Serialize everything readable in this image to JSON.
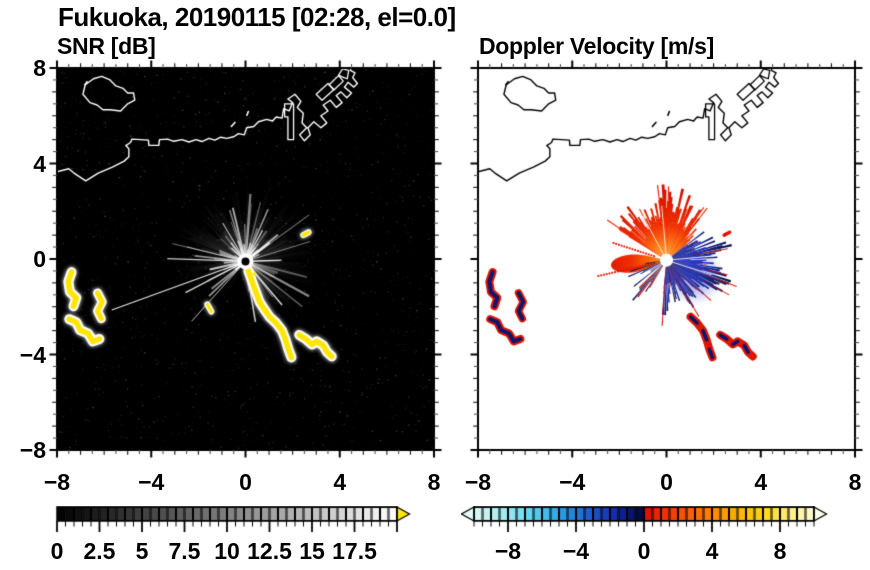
{
  "header": {
    "title": "Fukuoka, 20190115 [02:28, el=0.0]"
  },
  "panels": [
    {
      "id": "snr",
      "subtitle": "SNR [dB]"
    },
    {
      "id": "velocity",
      "subtitle": "Doppler Velocity [m/s]"
    }
  ],
  "axis": {
    "range": [
      -8,
      8
    ],
    "minor_step": 0.5,
    "major_ticks": [
      {
        "v": -8,
        "label": "−8"
      },
      {
        "v": -4,
        "label": "−4"
      },
      {
        "v": 0,
        "label": "0"
      },
      {
        "v": 4,
        "label": "4"
      },
      {
        "v": 8,
        "label": "8"
      }
    ]
  },
  "colorbars": [
    {
      "id": "snr",
      "range": [
        0,
        20
      ],
      "segments": 40,
      "arrow_left": false,
      "arrow_right": true,
      "over_color": "#ffe600",
      "under_color": "#000000",
      "cmap_stops": [
        [
          0,
          "#000000"
        ],
        [
          20,
          "#ffffff"
        ]
      ],
      "major_marks": [
        0,
        2.5,
        5,
        7.5,
        10,
        12.5,
        15,
        17.5,
        20
      ],
      "ticks": [
        {
          "v": 0,
          "label": "0"
        },
        {
          "v": 2.5,
          "label": "2.5"
        },
        {
          "v": 5,
          "label": "5"
        },
        {
          "v": 7.5,
          "label": "7.5"
        },
        {
          "v": 10,
          "label": "10"
        },
        {
          "v": 12.5,
          "label": "12.5"
        },
        {
          "v": 15,
          "label": "15"
        },
        {
          "v": 17.5,
          "label": "17.5"
        }
      ]
    },
    {
      "id": "velocity",
      "range": [
        -10,
        10
      ],
      "segments": 40,
      "arrow_left": true,
      "arrow_right": true,
      "over_color": "#fffde8",
      "under_color": "#e6fbf7",
      "cmap_stops": [
        [
          -10,
          "#dcf8f4"
        ],
        [
          -8.5,
          "#aaeef2"
        ],
        [
          -7,
          "#6cdcf2"
        ],
        [
          -5.5,
          "#38b4ea"
        ],
        [
          -4,
          "#1e7ed8"
        ],
        [
          -3,
          "#1c52cc"
        ],
        [
          -2,
          "#1534b8"
        ],
        [
          -1.2,
          "#0a2090"
        ],
        [
          -0.5,
          "#051056"
        ],
        [
          -0.05,
          "#02082e"
        ],
        [
          0.05,
          "#da0c00"
        ],
        [
          0.8,
          "#ea2400"
        ],
        [
          2,
          "#f84800"
        ],
        [
          3.2,
          "#ff6c00"
        ],
        [
          4.5,
          "#ff9400"
        ],
        [
          6,
          "#ffbe00"
        ],
        [
          7.2,
          "#ffd820"
        ],
        [
          8.2,
          "#ffe966"
        ],
        [
          9.2,
          "#fff5a8"
        ],
        [
          10,
          "#fffbd8"
        ]
      ],
      "major_marks": [
        -8,
        -4,
        0,
        4,
        8
      ],
      "ticks": [
        {
          "v": -8,
          "label": "−8"
        },
        {
          "v": -4,
          "label": "−4"
        },
        {
          "v": 0,
          "label": "0"
        },
        {
          "v": 4,
          "label": "4"
        },
        {
          "v": 8,
          "label": "8"
        }
      ]
    }
  ],
  "map": {
    "coast_main": [
      [
        -8,
        3.65
      ],
      [
        -7.5,
        3.78
      ],
      [
        -7.28,
        3.6
      ],
      [
        -6.78,
        3.27
      ],
      [
        -6.25,
        3.6
      ],
      [
        -5.65,
        3.85
      ],
      [
        -5.15,
        4.1
      ],
      [
        -4.95,
        4.28
      ],
      [
        -4.95,
        4.62
      ],
      [
        -5.08,
        4.75
      ],
      [
        -4.88,
        4.88
      ],
      [
        -4.82,
        5.02
      ],
      [
        -4.45,
        5.0
      ],
      [
        -4.12,
        4.98
      ],
      [
        -4.1,
        4.76
      ],
      [
        -3.68,
        4.76
      ],
      [
        -3.65,
        5.0
      ],
      [
        -3.3,
        5.02
      ],
      [
        -3.05,
        4.93
      ],
      [
        -2.7,
        5.0
      ],
      [
        -2.4,
        4.9
      ],
      [
        -2.1,
        5.0
      ],
      [
        -1.85,
        4.92
      ],
      [
        -1.55,
        5.05
      ],
      [
        -1.3,
        4.98
      ],
      [
        -1.05,
        5.1
      ],
      [
        -0.8,
        5.05
      ],
      [
        -0.5,
        5.12
      ],
      [
        -0.3,
        5.25
      ],
      [
        -0.05,
        5.2
      ],
      [
        0.05,
        5.5
      ],
      [
        0.35,
        5.55
      ],
      [
        0.55,
        5.75
      ],
      [
        0.9,
        5.85
      ],
      [
        1.15,
        5.78
      ],
      [
        1.3,
        5.95
      ],
      [
        1.55,
        5.9
      ],
      [
        1.62,
        6.3
      ],
      [
        1.85,
        6.2
      ],
      [
        2.0,
        6.55
      ],
      [
        1.8,
        6.7
      ],
      [
        2.1,
        6.9
      ],
      [
        2.35,
        6.6
      ],
      [
        2.2,
        6.35
      ],
      [
        2.45,
        6.1
      ],
      [
        2.4,
        5.7
      ],
      [
        2.6,
        5.5
      ],
      [
        2.3,
        5.2
      ],
      [
        2.5,
        4.95
      ],
      [
        2.75,
        5.2
      ],
      [
        2.65,
        5.5
      ],
      [
        2.9,
        5.75
      ],
      [
        3.2,
        5.5
      ],
      [
        3.45,
        5.7
      ],
      [
        3.2,
        6.0
      ],
      [
        3.5,
        6.2
      ],
      [
        3.3,
        6.45
      ],
      [
        3.6,
        6.65
      ],
      [
        3.85,
        6.35
      ],
      [
        4.1,
        6.55
      ],
      [
        3.85,
        6.85
      ],
      [
        4.05,
        7.0
      ],
      [
        4.3,
        6.75
      ],
      [
        4.5,
        6.95
      ],
      [
        4.2,
        7.2
      ],
      [
        4.35,
        7.4
      ],
      [
        4.6,
        7.2
      ],
      [
        4.75,
        7.35
      ],
      [
        4.55,
        7.6
      ],
      [
        4.65,
        7.8
      ],
      [
        4.45,
        7.9
      ],
      [
        4.5,
        8.1
      ]
    ],
    "island": [
      [
        -6.9,
        6.9
      ],
      [
        -6.8,
        7.3
      ],
      [
        -6.45,
        7.55
      ],
      [
        -6.1,
        7.65
      ],
      [
        -5.75,
        7.5
      ],
      [
        -5.5,
        7.25
      ],
      [
        -5.2,
        7.15
      ],
      [
        -5.0,
        6.95
      ],
      [
        -4.75,
        6.95
      ],
      [
        -4.7,
        6.65
      ],
      [
        -5.0,
        6.5
      ],
      [
        -5.3,
        6.2
      ],
      [
        -5.75,
        6.25
      ],
      [
        -6.05,
        6.25
      ],
      [
        -6.3,
        6.45
      ],
      [
        -6.6,
        6.55
      ]
    ],
    "piers": [
      [
        [
          1.66,
          6.5
        ],
        [
          2.04,
          6.5
        ],
        [
          2.04,
          5.0
        ],
        [
          1.8,
          5.0
        ],
        [
          1.8,
          5.95
        ],
        [
          1.66,
          5.95
        ]
      ],
      [
        [
          3.0,
          6.9
        ],
        [
          3.5,
          7.35
        ],
        [
          3.75,
          7.1
        ],
        [
          3.25,
          6.65
        ]
      ],
      [
        [
          3.55,
          7.3
        ],
        [
          3.95,
          7.68
        ],
        [
          4.15,
          7.45
        ],
        [
          3.75,
          7.08
        ]
      ],
      [
        [
          3.95,
          7.7
        ],
        [
          4.12,
          7.96
        ],
        [
          4.38,
          7.9
        ],
        [
          4.32,
          7.55
        ],
        [
          4.12,
          7.62
        ]
      ]
    ],
    "islets": [
      [
        [
          -0.6,
          5.55
        ],
        [
          -0.45,
          5.72
        ]
      ],
      [
        [
          0.06,
          6.02
        ],
        [
          0.12,
          6.18
        ]
      ],
      [
        [
          -6.82,
          7.3
        ],
        [
          -6.72,
          7.42
        ]
      ]
    ]
  },
  "clutter": {
    "chain_a": [
      [
        0.12,
        -0.5
      ],
      [
        0.28,
        -0.95
      ],
      [
        0.45,
        -1.4
      ],
      [
        0.6,
        -1.8
      ],
      [
        0.78,
        -2.08
      ],
      [
        1.02,
        -2.42
      ],
      [
        1.3,
        -2.68
      ],
      [
        1.55,
        -3.0
      ],
      [
        1.7,
        -3.38
      ],
      [
        1.82,
        -3.78
      ],
      [
        1.95,
        -4.12
      ]
    ],
    "chain_b": [
      [
        2.28,
        -3.18
      ],
      [
        2.56,
        -3.35
      ],
      [
        2.82,
        -3.58
      ],
      [
        3.02,
        -3.45
      ],
      [
        3.3,
        -3.62
      ],
      [
        3.46,
        -3.9
      ],
      [
        3.66,
        -4.08
      ]
    ],
    "cluster_a": [
      [
        -7.38,
        -0.55
      ],
      [
        -7.52,
        -0.95
      ],
      [
        -7.45,
        -1.38
      ],
      [
        -7.18,
        -1.62
      ],
      [
        -7.3,
        -1.98
      ]
    ],
    "cluster_b": [
      [
        -6.28,
        -1.42
      ],
      [
        -6.08,
        -1.8
      ],
      [
        -6.28,
        -2.18
      ],
      [
        -6.12,
        -2.5
      ]
    ],
    "cluster_c": [
      [
        -7.48,
        -2.52
      ],
      [
        -7.18,
        -2.65
      ],
      [
        -7.02,
        -2.98
      ],
      [
        -6.68,
        -3.12
      ],
      [
        -6.48,
        -3.45
      ],
      [
        -6.2,
        -3.35
      ]
    ],
    "dash_mid": [
      [
        -1.62,
        -1.9
      ],
      [
        -1.45,
        -2.2
      ]
    ],
    "speck": [
      [
        2.45,
        1.0
      ],
      [
        2.68,
        1.12
      ]
    ],
    "center_specks": [
      [
        0.18,
        -0.3
      ],
      [
        0.38,
        -0.62
      ]
    ]
  },
  "chart_data": [
    {
      "type": "heatmap",
      "title": "SNR [dB]",
      "x_range": [
        -8,
        8
      ],
      "y_range": [
        -8,
        8
      ],
      "x_ticks": [
        -8,
        -4,
        0,
        4,
        8
      ],
      "y_ticks": [
        -8,
        -4,
        0,
        4,
        8
      ],
      "background": "black",
      "colorbar": {
        "range": [
          0,
          20
        ],
        "tick_labels": [
          0,
          2.5,
          5,
          7.5,
          10,
          12.5,
          15,
          17.5
        ],
        "colormap": "grayscale black-to-white, yellow arrow above 20 dB"
      },
      "features": [
        "white coastline of bay with island (upper left) and harbor piers (upper right)",
        "bright white radial beams emanating from radar at (0,0)",
        "yellow high-SNR clutter arc from about (0.1,-0.5) to (2.0,-4.1) and (2.3,-3.2) to (3.7,-4.1)",
        "yellow clutter cluster near x -7.5..-6.1, y -0.5..-3.5",
        "small yellow echo near (2.5,1.0) and (-1.5,-2.0)",
        "faint speckle noise over black background"
      ]
    },
    {
      "type": "heatmap",
      "title": "Doppler Velocity [m/s]",
      "x_range": [
        -8,
        8
      ],
      "y_range": [
        -8,
        8
      ],
      "x_ticks": [
        -8,
        -4,
        0,
        4,
        8
      ],
      "y_ticks": [
        -8,
        -4,
        0,
        4,
        8
      ],
      "background": "white",
      "colorbar": {
        "range": [
          -10,
          10
        ],
        "tick_labels": [
          -8,
          -4,
          0,
          4,
          8
        ],
        "colormap": "pale cyan to navy for negative, red to orange to pale yellow for positive"
      },
      "features": [
        "black coastline identical to SNR panel",
        "red/orange spiky fan north of radar and solid orange-red wedge pointing west",
        "dark navy-blue spiky region east and southeast of radar with brighter blue core",
        "red dotted rays toward west",
        "navy clutter echoes fringed in red matching SNR clutter locations"
      ]
    }
  ]
}
